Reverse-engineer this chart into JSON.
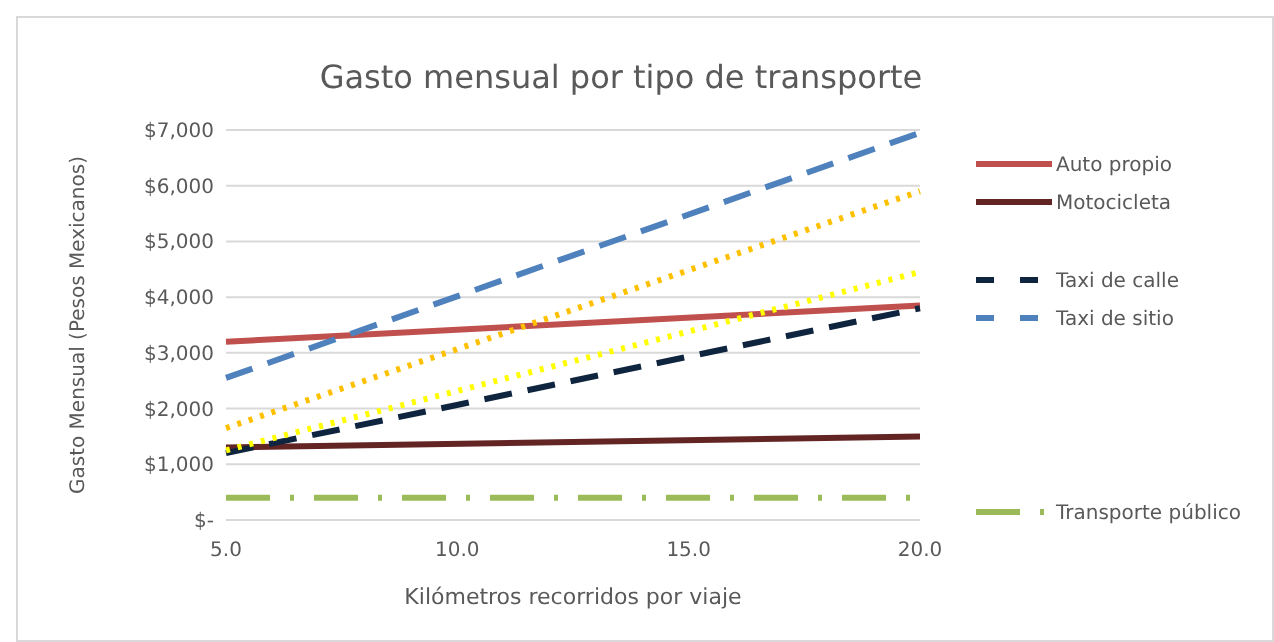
{
  "chart_data": {
    "type": "line",
    "title": "Gasto mensual por tipo de transporte",
    "xlabel": "Kilómetros recorridos por viaje",
    "ylabel": "Gasto Mensual (Pesos Mexicanos)",
    "x": [
      5,
      20
    ],
    "xlim": [
      5,
      20
    ],
    "xticks": [
      {
        "value": 5,
        "label": "5.0"
      },
      {
        "value": 10,
        "label": "10.0"
      },
      {
        "value": 15,
        "label": "15.0"
      },
      {
        "value": 20,
        "label": "20.0"
      }
    ],
    "ylim": [
      0,
      7000
    ],
    "yticks": [
      {
        "value": 0,
        "label": "$-"
      },
      {
        "value": 1000,
        "label": "$1,000"
      },
      {
        "value": 2000,
        "label": "$2,000"
      },
      {
        "value": 3000,
        "label": "$3,000"
      },
      {
        "value": 4000,
        "label": "$4,000"
      },
      {
        "value": 5000,
        "label": "$5,000"
      },
      {
        "value": 6000,
        "label": "$6,000"
      },
      {
        "value": 7000,
        "label": "$7,000"
      }
    ],
    "grid": "y",
    "legend": "right",
    "marker": "none",
    "series": [
      {
        "name": "Auto propio",
        "color": "#c0504d",
        "line_style": "solid",
        "values": [
          3200,
          3850
        ]
      },
      {
        "name": "Motocicleta",
        "color": "#632523",
        "line_style": "solid",
        "values": [
          1300,
          1500
        ]
      },
      {
        "name": "Taxi de calle",
        "color": "#0f243e",
        "line_style": "dashed",
        "values": [
          1200,
          3800
        ]
      },
      {
        "name": "Taxi de sitio",
        "color": "#4f81bd",
        "line_style": "dashed",
        "values": [
          2550,
          6950
        ]
      },
      {
        "color": "#ffc000",
        "line_style": "dotted",
        "values": [
          1650,
          5900
        ]
      },
      {
        "color": "#ffff00",
        "line_style": "dotted",
        "values": [
          1250,
          4450
        ]
      },
      {
        "name": "Transporte público",
        "color": "#9bbb59",
        "line_style": "dashdot",
        "values": [
          400,
          400
        ]
      }
    ]
  }
}
